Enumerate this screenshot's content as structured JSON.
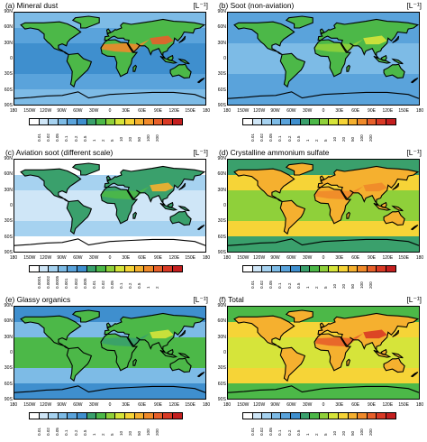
{
  "lat_labels": [
    "90N",
    "60N",
    "30N",
    "0",
    "30S",
    "60S",
    "90S"
  ],
  "lat_labels_short": [
    "90N",
    "60N",
    "30N",
    "0",
    "30S",
    "60S",
    "90S"
  ],
  "lon_labels": [
    "180",
    "150W",
    "120W",
    "90W",
    "60W",
    "30W",
    "0",
    "30E",
    "60E",
    "90E",
    "120E",
    "150E",
    "180"
  ],
  "unit_label": "[L⁻¹]",
  "colorbar_colors": [
    "#ffffff",
    "#cfe6f7",
    "#a6d2f0",
    "#7dbbe6",
    "#5aa3db",
    "#3f8fce",
    "#3aa06c",
    "#4cb848",
    "#8fd03a",
    "#d6e43a",
    "#f6d437",
    "#f5b02f",
    "#f08a2a",
    "#e7602a",
    "#d93a25",
    "#c41f1f"
  ],
  "panels": [
    {
      "id": "a",
      "title": "(a)  Mineral dust",
      "scale_labels": [
        "0.01",
        "0.02",
        "0.05",
        "0.1",
        "0.2",
        "0.5",
        "1",
        "2",
        "5",
        "10",
        "20",
        "50",
        "100",
        "200"
      ],
      "fill": {
        "ocean": "#5aa3db",
        "ocean_trop": "#3f8fce",
        "land": "#4cb848",
        "desert": "#f08a2a",
        "hot": "#e7602a",
        "polar": "#7dbbe6"
      }
    },
    {
      "id": "b",
      "title": "(b)  Soot (non-aviation)",
      "scale_labels": [
        "0.01",
        "0.02",
        "0.05",
        "0.1",
        "0.2",
        "0.5",
        "1",
        "2",
        "5",
        "10",
        "20",
        "50",
        "100",
        "200"
      ],
      "fill": {
        "ocean": "#5aa3db",
        "ocean_trop": "#7dbbe6",
        "land": "#4cb848",
        "desert": "#8fd03a",
        "hot": "#d6e43a",
        "polar": "#5aa3db"
      }
    },
    {
      "id": "c",
      "title": "(c)  Aviation soot (different scale)",
      "scale_labels": [
        "0.0001",
        "0.0002",
        "0.0005",
        "0.001",
        "0.002",
        "0.005",
        "0.01",
        "0.02",
        "0.05",
        "0.1",
        "0.2",
        "0.5",
        "1",
        "2"
      ],
      "fill": {
        "ocean": "#a6d2f0",
        "ocean_trop": "#cfe6f7",
        "land": "#3aa06c",
        "desert": "#4cb848",
        "hot": "#f5b02f",
        "polar": "#ffffff"
      }
    },
    {
      "id": "d",
      "title": "(d)  Crystalline ammonium sulfate",
      "scale_labels": [
        "0.01",
        "0.02",
        "0.05",
        "0.1",
        "0.2",
        "0.5",
        "1",
        "2",
        "5",
        "10",
        "20",
        "50",
        "100",
        "200"
      ],
      "fill": {
        "ocean": "#f6d437",
        "ocean_trop": "#8fd03a",
        "land": "#f5b02f",
        "desert": "#f08a2a",
        "hot": "#f08a2a",
        "polar": "#3aa06c"
      }
    },
    {
      "id": "e",
      "title": "(e)  Glassy organics",
      "scale_labels": [
        "0.01",
        "0.02",
        "0.05",
        "0.1",
        "0.2",
        "0.5",
        "1",
        "2",
        "5",
        "10",
        "20",
        "50",
        "100",
        "200"
      ],
      "fill": {
        "ocean": "#7dbbe6",
        "ocean_trop": "#4cb848",
        "land": "#4cb848",
        "desert": "#3aa06c",
        "hot": "#d6e43a",
        "polar": "#3f8fce"
      }
    },
    {
      "id": "f",
      "title": "(f)  Total",
      "scale_labels": [
        "0.01",
        "0.02",
        "0.05",
        "0.1",
        "0.2",
        "0.5",
        "1",
        "2",
        "5",
        "10",
        "20",
        "50",
        "100",
        "200"
      ],
      "fill": {
        "ocean": "#f6d437",
        "ocean_trop": "#d6e43a",
        "land": "#f5b02f",
        "desert": "#e7602a",
        "hot": "#d93a25",
        "polar": "#4cb848"
      }
    }
  ]
}
